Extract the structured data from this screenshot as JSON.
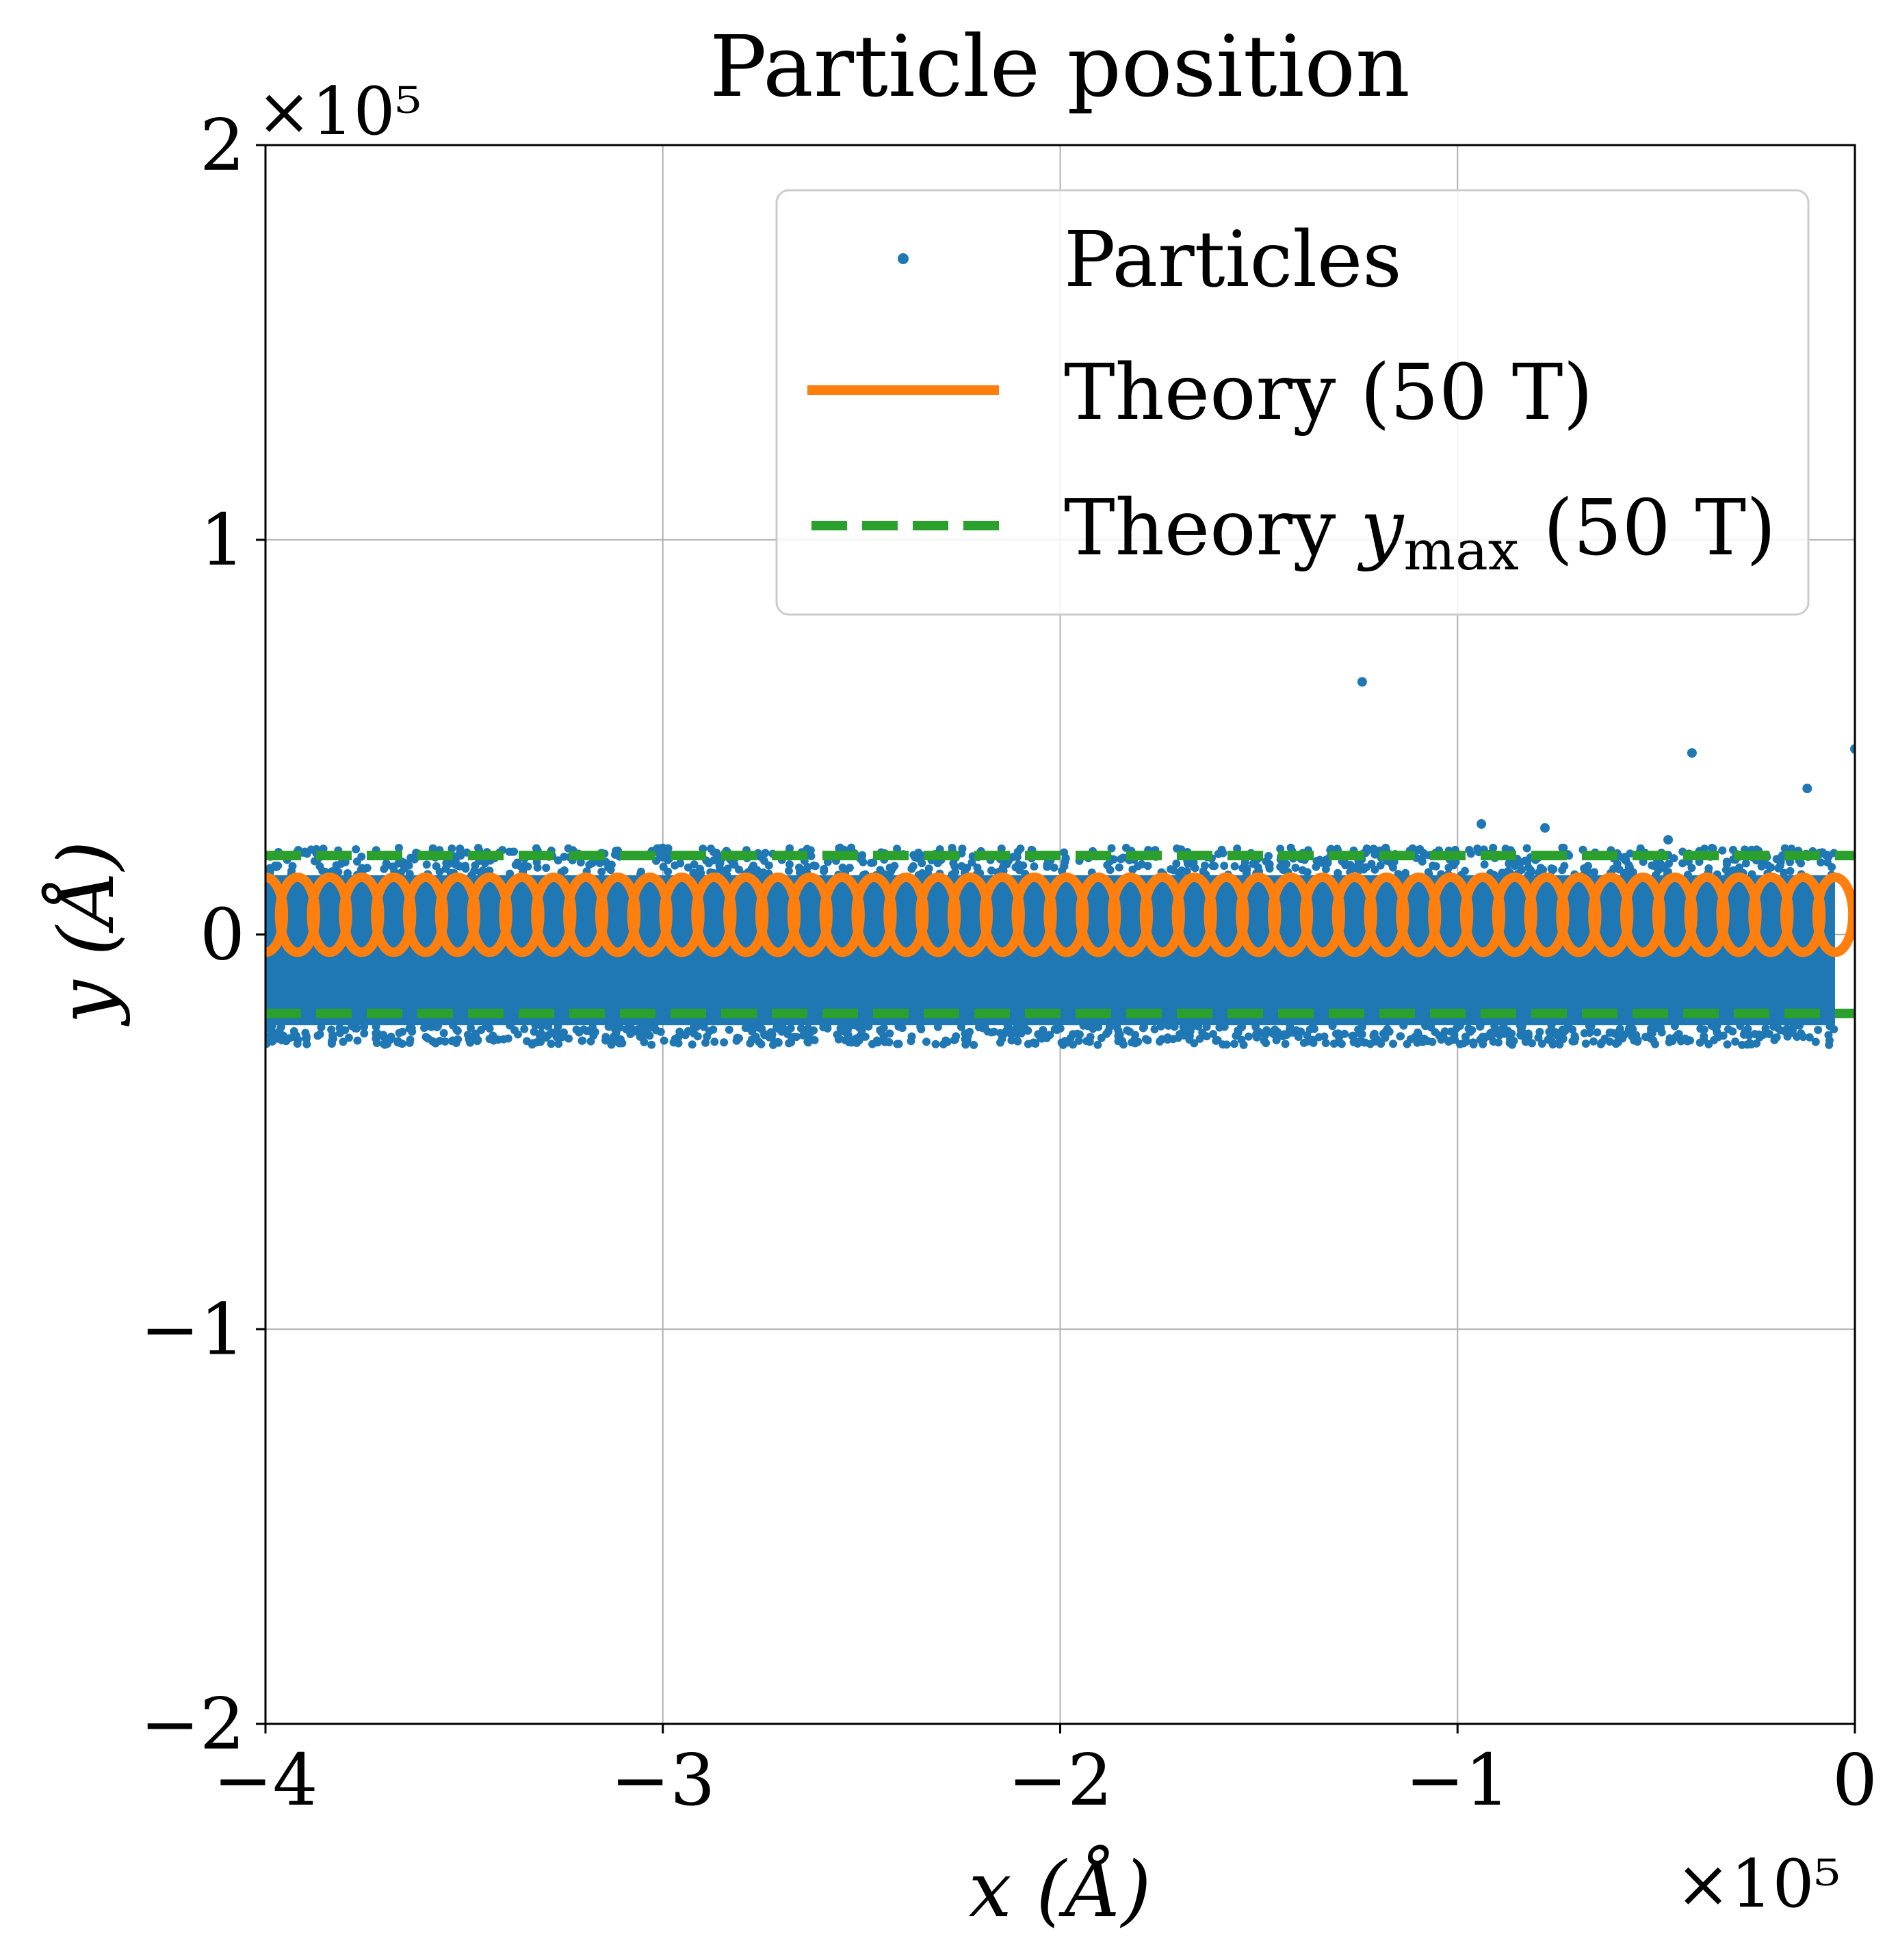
{
  "chart_data": {
    "type": "scatter",
    "title": "Particle position",
    "xlabel": "x (Å)",
    "ylabel": "y (Å)",
    "x_multiplier": "×10⁵",
    "y_multiplier": "×10⁵",
    "xlim": [
      -4,
      0
    ],
    "ylim": [
      -2,
      2
    ],
    "units_scale": 100000,
    "xticks": [
      -4,
      -3,
      -2,
      -1,
      0
    ],
    "yticks": [
      -2,
      -1,
      0,
      1,
      2
    ],
    "xtick_labels": [
      "−4",
      "−3",
      "−2",
      "−1",
      "0"
    ],
    "ytick_labels": [
      "−2",
      "−1",
      "0",
      "1",
      "2"
    ],
    "grid": true,
    "legend": {
      "placement": "upper-right",
      "entries": [
        {
          "label": "Particles",
          "style": "dot"
        },
        {
          "label": "Theory (50 T)",
          "style": "solid"
        },
        {
          "label": "Theory ",
          "label_var": "y",
          "label_sub": "max",
          "label_tail": " (50 T)",
          "style": "dashed"
        }
      ]
    },
    "series": [
      {
        "name": "Particles",
        "kind": "scatter",
        "color": "#1f77b4",
        "band_x_range": [
          -4.0,
          -0.05
        ],
        "band_y_range": [
          -0.23,
          0.15
        ],
        "band_edge_y_range": [
          -0.28,
          0.22
        ],
        "outliers": [
          {
            "x": -1.24,
            "y": 0.64
          },
          {
            "x": -0.41,
            "y": 0.46
          },
          {
            "x": -0.12,
            "y": 0.37
          },
          {
            "x": 0.0,
            "y": 0.47
          },
          {
            "x": -0.94,
            "y": 0.28
          },
          {
            "x": -0.78,
            "y": 0.27
          },
          {
            "x": -0.47,
            "y": 0.24
          }
        ]
      },
      {
        "name": "Theory (50 T)",
        "kind": "trochoid",
        "color": "#ff7f0e",
        "x_start": -4.0,
        "x_end": -0.05,
        "y_center": 0.05,
        "y_half_amplitude": 0.095,
        "loop_x_half_width": 0.045,
        "loop_count": 50
      },
      {
        "name": "Theory y_max (50 T)",
        "kind": "hline-dashed",
        "color": "#2ca02c",
        "y_values": [
          0.2,
          -0.2
        ],
        "x_range": [
          -4,
          0
        ]
      }
    ]
  }
}
